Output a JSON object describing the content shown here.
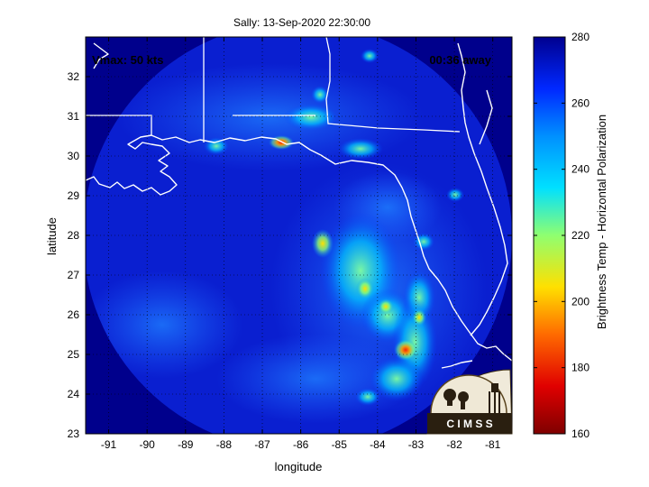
{
  "title": "Sally: 13-Sep-2020 22:30:00",
  "vmax": "Vmax: 50 kts",
  "time_away": "00:36 away",
  "axes": {
    "xlabel": "longitude",
    "ylabel": "latitude",
    "xlim": [
      -91.6,
      -80.5
    ],
    "ylim": [
      23,
      33
    ],
    "xticks": [
      "-91",
      "-90",
      "-89",
      "-88",
      "-87",
      "-86",
      "-85",
      "-84",
      "-83",
      "-82",
      "-81"
    ],
    "yticks": [
      "23",
      "24",
      "25",
      "26",
      "27",
      "28",
      "29",
      "30",
      "31",
      "32"
    ],
    "grid": true
  },
  "colorbar": {
    "label": "Brightness Temp - Horizontal Polarization",
    "range": [
      160,
      280
    ],
    "ticks": [
      "160",
      "180",
      "200",
      "220",
      "240",
      "260",
      "280"
    ]
  },
  "logo_text": "C I M S S",
  "colors": {
    "background_field": "#0a1fd0",
    "no_data": "#00008c",
    "coast": "#ffffff"
  }
}
